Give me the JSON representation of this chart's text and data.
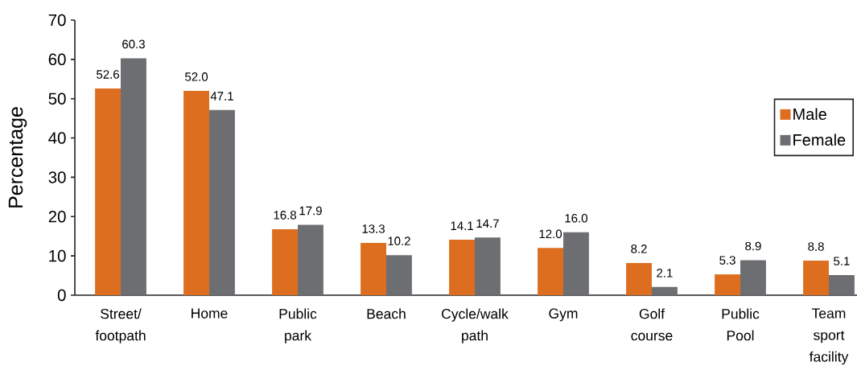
{
  "chart_data": {
    "type": "bar",
    "ylabel": "Percentage",
    "categories": [
      "Street/ footpath",
      "Home",
      "Public park",
      "Beach",
      "Cycle/walk path",
      "Gym",
      "Golf course",
      "Public Pool",
      "Team sport facility"
    ],
    "series": [
      {
        "name": "Male",
        "color": "#dd6e1f",
        "values": [
          52.6,
          52.0,
          16.8,
          13.3,
          14.1,
          12.0,
          8.2,
          5.3,
          8.8
        ],
        "value_labels": [
          "52.6",
          "52.0",
          "16.8",
          "13.3",
          "14.1",
          "12.0",
          "8.2",
          "5.3",
          "8.8"
        ]
      },
      {
        "name": "Female",
        "color": "#6d6e72",
        "values": [
          60.3,
          47.1,
          17.9,
          10.2,
          14.7,
          16.0,
          2.1,
          8.9,
          5.1
        ],
        "value_labels": [
          "60.3",
          "47.1",
          "17.9",
          "10.2",
          "14.7",
          "16.0",
          "2.1",
          "8.9",
          "5.1"
        ]
      }
    ],
    "ylim": [
      0,
      70
    ],
    "yticks": [
      0,
      10,
      20,
      30,
      40,
      50,
      60,
      70
    ],
    "legend": "right"
  }
}
